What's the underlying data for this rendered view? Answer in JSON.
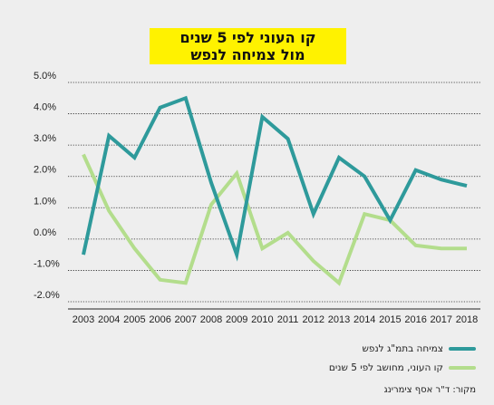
{
  "chart_data": {
    "type": "line",
    "title_lines": [
      "קו העוני לפי 5 שנים",
      "מול צמיחה לנפש"
    ],
    "categories": [
      "2003",
      "2004",
      "2005",
      "2006",
      "2007",
      "2008",
      "2009",
      "2010",
      "2011",
      "2012",
      "2013",
      "2014",
      "2015",
      "2016",
      "2017",
      "2018"
    ],
    "series": [
      {
        "name": "צמיחה בתמ\"ג לנפש",
        "color": "#2e9a9b",
        "values": [
          -0.5,
          3.3,
          2.6,
          4.2,
          4.5,
          1.8,
          -0.5,
          3.9,
          3.2,
          0.8,
          2.6,
          2.0,
          0.6,
          2.2,
          1.9,
          1.7
        ]
      },
      {
        "name": "קו העוני, מחושב לפי 5 שנים",
        "color": "#b3dd8c",
        "values": [
          2.7,
          0.9,
          -0.3,
          -1.3,
          -1.4,
          1.1,
          2.1,
          -0.3,
          0.2,
          -0.7,
          -1.4,
          0.8,
          0.6,
          -0.2,
          -0.3,
          -0.3
        ]
      }
    ],
    "yticks": [
      "5.0%",
      "4.0%",
      "3.0%",
      "2.0%",
      "1.0%",
      "0.0%",
      "-1.0%",
      "-2.0%"
    ],
    "ylim": [
      -2,
      5
    ],
    "grid": true,
    "legend_position": "bottom-right"
  },
  "source": "מקור: ד\"ר אסף צימרינג"
}
